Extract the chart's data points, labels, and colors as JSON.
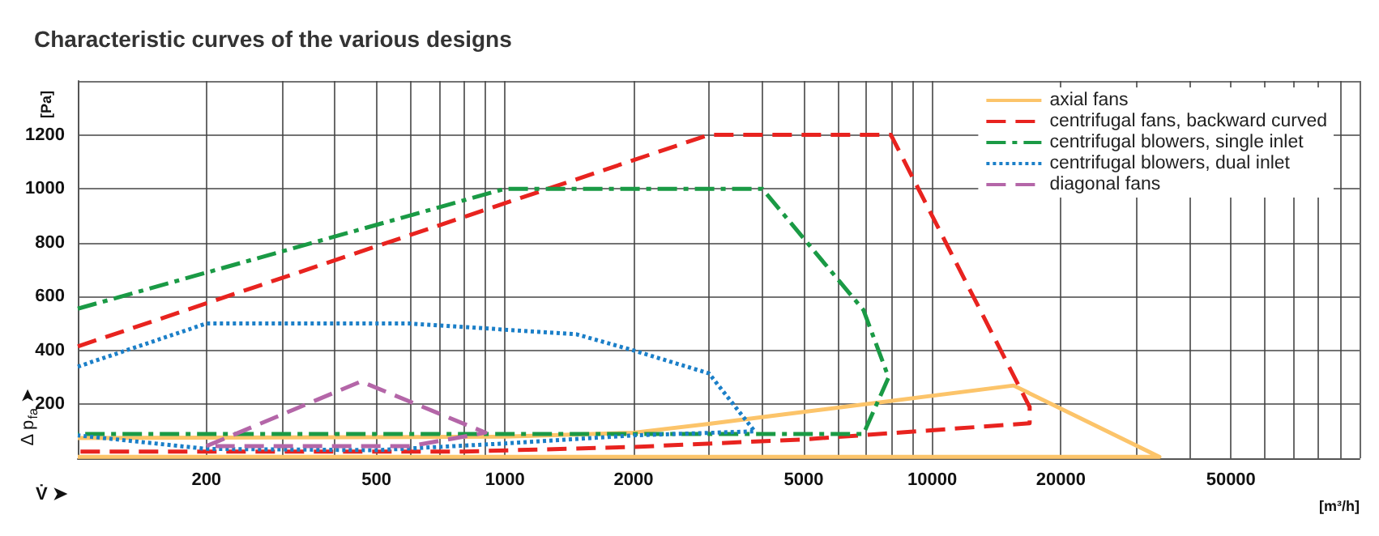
{
  "chart_data": {
    "type": "line",
    "title": "Characteristic curves of the various designs",
    "xlabel": "V̇ ➤",
    "ylabel": "Δ p$_{fa}$ ➤",
    "annotations": [
      "[Pa]",
      "[m³/h]"
    ],
    "log": "x",
    "xlim": [
      100,
      100000
    ],
    "ylim": [
      0,
      1400
    ],
    "xticks": [
      {
        "value": 100,
        "label": null
      },
      200,
      {
        "value": 300,
        "label": null
      },
      {
        "value": 400,
        "label": null
      },
      500,
      {
        "value": 600,
        "label": null
      },
      {
        "value": 700,
        "label": null
      },
      {
        "value": 800,
        "label": null
      },
      {
        "value": 900,
        "label": null
      },
      1000,
      2000,
      {
        "value": 3000,
        "label": null
      },
      {
        "value": 4000,
        "label": null
      },
      5000,
      {
        "value": 6000,
        "label": null
      },
      {
        "value": 7000,
        "label": null
      },
      {
        "value": 8000,
        "label": null
      },
      {
        "value": 9000,
        "label": null
      },
      10000,
      20000,
      {
        "value": 30000,
        "label": null
      },
      {
        "value": 40000,
        "label": null
      },
      50000,
      {
        "value": 60000,
        "label": null
      },
      {
        "value": 70000,
        "label": null
      },
      {
        "value": 80000,
        "label": null
      },
      {
        "value": 90000,
        "label": null
      },
      {
        "value": 100000,
        "label": null
      }
    ],
    "yticks": [
      {
        "value": 0,
        "label": null
      },
      200,
      400,
      600,
      800,
      1000,
      1200,
      {
        "value": 1400,
        "label": null
      }
    ],
    "grid": true,
    "legend": "top right",
    "marker": "none",
    "series": [
      {
        "name": "axial fans",
        "color": "#fcc46a",
        "line_style": "solid",
        "x": [
          100,
          1000,
          2000,
          3000,
          15500,
          34000,
          100
        ],
        "values": [
          75,
          80,
          95,
          128,
          270,
          5,
          5
        ]
      },
      {
        "name": "centrifugal fans, backward curved",
        "color": "#e8231f",
        "line_style": "dashed",
        "x": [
          100,
          3000,
          8000,
          16900,
          16900,
          5000,
          2000,
          800,
          100
        ],
        "values": [
          415,
          1200,
          1200,
          190,
          130,
          70,
          42,
          25,
          25
        ]
      },
      {
        "name": "centrifugal blowers, single inlet",
        "color": "#1a9a45",
        "line_style": "dashdot",
        "x": [
          100,
          1000,
          4000,
          6900,
          7900,
          6900,
          100
        ],
        "values": [
          555,
          1000,
          1000,
          550,
          300,
          90,
          90
        ]
      },
      {
        "name": "centrifugal blowers, dual inlet",
        "color": "#1b7fc8",
        "line_style": "dotted",
        "x": [
          100,
          200,
          600,
          1470,
          2000,
          3000,
          3840,
          2000,
          1000,
          500,
          200,
          100
        ],
        "values": [
          340,
          500,
          500,
          460,
          400,
          315,
          100,
          85,
          55,
          30,
          35,
          85
        ]
      },
      {
        "name": "diagonal fans",
        "color": "#b466a8",
        "line_style": "dashed",
        "x": [
          200,
          460,
          900,
          600,
          210
        ],
        "values": [
          45,
          285,
          95,
          45,
          45
        ]
      }
    ]
  }
}
